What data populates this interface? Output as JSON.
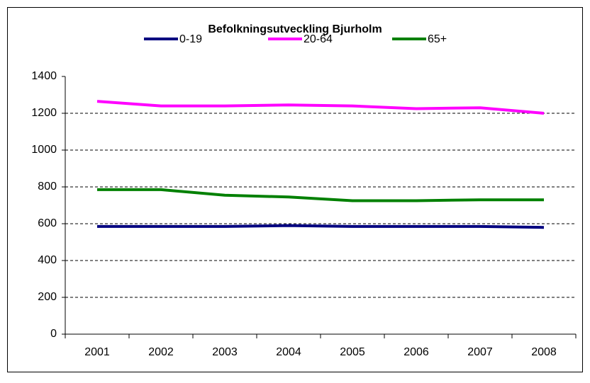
{
  "chart_data": {
    "type": "line",
    "title": "Befolkningsutveckling Bjurholm",
    "categories": [
      "2001",
      "2002",
      "2003",
      "2004",
      "2005",
      "2006",
      "2007",
      "2008"
    ],
    "series": [
      {
        "name": "0-19",
        "color": "#000080",
        "values": [
          585,
          585,
          585,
          590,
          585,
          585,
          585,
          580
        ]
      },
      {
        "name": "20-64",
        "color": "#ff00ff",
        "values": [
          1265,
          1240,
          1240,
          1245,
          1240,
          1225,
          1230,
          1200
        ]
      },
      {
        "name": "65+",
        "color": "#008000",
        "values": [
          785,
          785,
          755,
          745,
          725,
          725,
          730,
          730
        ]
      }
    ],
    "ylim": [
      0,
      1400
    ],
    "yticks": [
      0,
      200,
      400,
      600,
      800,
      1000,
      1200,
      1400
    ],
    "grid": true
  }
}
